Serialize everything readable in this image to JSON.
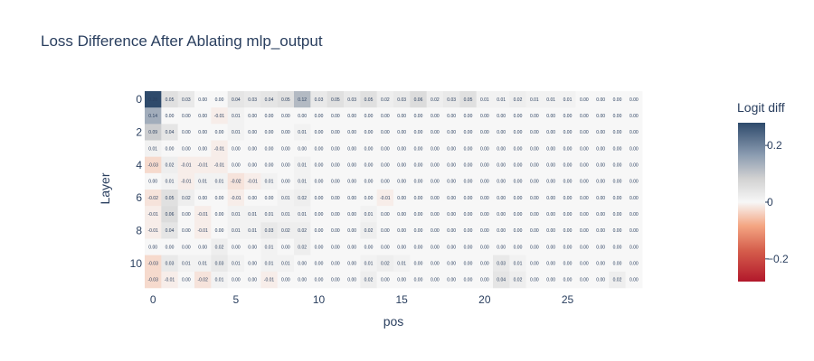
{
  "chart_data": {
    "type": "heatmap",
    "title": "Loss Difference After Ablating mlp_output",
    "xlabel": "pos",
    "ylabel": "Layer",
    "x": [
      0,
      1,
      2,
      3,
      4,
      5,
      6,
      7,
      8,
      9,
      10,
      11,
      12,
      13,
      14,
      15,
      16,
      17,
      18,
      19,
      20,
      21,
      22,
      23,
      24,
      25,
      26,
      27,
      28,
      29
    ],
    "y": [
      0,
      1,
      2,
      3,
      4,
      5,
      6,
      7,
      8,
      9,
      10,
      11
    ],
    "x_ticks": [
      0,
      5,
      10,
      15,
      20,
      25
    ],
    "y_ticks": [
      0,
      2,
      4,
      6,
      8,
      10
    ],
    "z": [
      [
        0.28,
        0.05,
        0.03,
        0.0,
        0.0,
        0.04,
        0.03,
        0.04,
        0.05,
        0.12,
        0.03,
        0.05,
        0.03,
        0.05,
        0.02,
        0.03,
        0.06,
        0.02,
        0.03,
        0.05,
        0.01,
        0.01,
        0.02,
        0.01,
        0.01,
        0.01,
        0.0,
        0.0,
        0.0,
        0.0
      ],
      [
        0.14,
        0.0,
        0.0,
        0.0,
        -0.01,
        0.01,
        0.0,
        0.0,
        0.0,
        0.0,
        0.0,
        0.0,
        0.0,
        0.0,
        0.0,
        0.0,
        0.0,
        0.0,
        0.0,
        0.0,
        0.0,
        0.0,
        0.0,
        0.0,
        0.0,
        0.0,
        0.0,
        0.0,
        0.0,
        0.0
      ],
      [
        0.09,
        0.04,
        0.0,
        0.0,
        0.0,
        0.01,
        0.0,
        0.0,
        0.0,
        0.01,
        0.0,
        0.0,
        0.0,
        0.0,
        0.0,
        0.0,
        0.0,
        0.0,
        0.0,
        0.0,
        0.0,
        0.0,
        0.0,
        0.0,
        0.0,
        0.0,
        0.0,
        0.0,
        0.0,
        0.0
      ],
      [
        0.01,
        0.0,
        0.0,
        0.0,
        -0.01,
        0.0,
        0.0,
        0.0,
        0.0,
        0.0,
        0.0,
        0.0,
        0.0,
        0.0,
        0.0,
        0.0,
        0.0,
        0.0,
        0.0,
        0.0,
        0.0,
        0.0,
        0.0,
        0.0,
        0.0,
        0.0,
        0.0,
        0.0,
        0.0,
        0.0
      ],
      [
        -0.03,
        0.02,
        -0.01,
        -0.01,
        -0.01,
        0.0,
        0.0,
        0.0,
        0.0,
        0.01,
        0.0,
        0.0,
        0.0,
        0.0,
        0.0,
        0.0,
        0.0,
        0.0,
        0.0,
        0.0,
        0.0,
        0.0,
        0.0,
        0.0,
        0.0,
        0.0,
        0.0,
        0.0,
        0.0,
        0.0
      ],
      [
        0.0,
        0.01,
        -0.01,
        0.01,
        0.01,
        -0.02,
        -0.01,
        0.01,
        0.0,
        0.01,
        0.0,
        0.0,
        0.0,
        0.0,
        0.0,
        0.0,
        0.0,
        0.0,
        0.0,
        0.0,
        0.0,
        0.0,
        0.0,
        0.0,
        0.0,
        0.0,
        0.0,
        0.0,
        0.0,
        0.0
      ],
      [
        -0.02,
        0.05,
        0.02,
        0.0,
        0.0,
        -0.01,
        0.0,
        0.0,
        0.01,
        0.02,
        0.0,
        0.0,
        0.0,
        0.0,
        -0.01,
        0.0,
        0.0,
        0.0,
        0.0,
        0.0,
        0.0,
        0.0,
        0.0,
        0.0,
        0.0,
        0.0,
        0.0,
        0.0,
        0.0,
        0.0
      ],
      [
        -0.01,
        0.06,
        0.0,
        -0.01,
        0.0,
        0.01,
        0.01,
        0.01,
        0.01,
        0.01,
        0.0,
        0.0,
        0.0,
        0.01,
        0.0,
        0.0,
        0.0,
        0.0,
        0.0,
        0.0,
        0.0,
        0.0,
        0.0,
        0.0,
        0.0,
        0.0,
        0.0,
        0.0,
        0.0,
        0.0
      ],
      [
        -0.01,
        0.04,
        0.0,
        -0.01,
        0.0,
        0.01,
        0.01,
        0.03,
        0.02,
        0.02,
        0.0,
        0.0,
        0.0,
        0.02,
        0.0,
        0.0,
        0.0,
        0.0,
        0.0,
        0.0,
        0.0,
        0.0,
        0.0,
        0.0,
        0.0,
        0.0,
        0.0,
        0.0,
        0.0,
        0.0
      ],
      [
        0.0,
        0.0,
        0.0,
        0.0,
        0.02,
        0.0,
        0.0,
        0.01,
        0.0,
        0.02,
        0.0,
        0.0,
        0.0,
        0.0,
        0.0,
        0.0,
        0.0,
        0.0,
        0.0,
        0.0,
        0.0,
        0.0,
        0.0,
        0.0,
        0.0,
        0.0,
        0.0,
        0.0,
        0.0,
        0.0
      ],
      [
        -0.03,
        0.03,
        0.01,
        0.01,
        0.03,
        0.01,
        0.0,
        0.01,
        0.01,
        0.0,
        0.0,
        0.0,
        0.0,
        0.01,
        0.02,
        0.01,
        0.0,
        0.0,
        0.0,
        0.0,
        0.0,
        0.03,
        0.01,
        0.0,
        0.0,
        0.0,
        0.0,
        0.0,
        0.0,
        0.0
      ],
      [
        -0.03,
        -0.01,
        0.0,
        -0.02,
        0.01,
        0.0,
        0.0,
        -0.01,
        0.0,
        0.0,
        0.0,
        0.0,
        0.0,
        0.02,
        0.0,
        0.0,
        0.0,
        0.0,
        0.0,
        0.0,
        0.0,
        0.04,
        0.02,
        0.0,
        0.0,
        0.0,
        0.0,
        0.0,
        0.02,
        0.0
      ]
    ],
    "colorscale": "RdBu (diverging, red negative, blue positive)",
    "zmin": -0.28,
    "zmax": 0.28,
    "colorbar": {
      "title": "Logit diff",
      "ticks": [
        0.2,
        0,
        -0.2
      ],
      "tick_labels": [
        "0.2",
        "0",
        "−0.2"
      ]
    },
    "grid": false,
    "legend": "right"
  },
  "colors": {
    "text": "#2a3f5f",
    "neg_end": "#b2182b",
    "mid": "#f7f7f7",
    "pos_end": "#2e4a6b"
  }
}
